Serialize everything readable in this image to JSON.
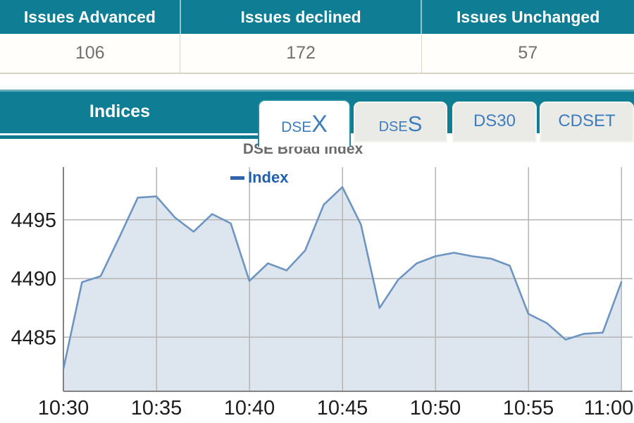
{
  "summary_table": {
    "columns": [
      {
        "header": "Issues Advanced",
        "value": "106"
      },
      {
        "header": "Issues declined",
        "value": "172"
      },
      {
        "header": "Issues Unchanged",
        "value": "57"
      }
    ]
  },
  "indices_panel": {
    "title": "Indices",
    "tabs": [
      {
        "label_prefix": "DSE",
        "label_suffix": "X",
        "active": true
      },
      {
        "label_prefix": "DSE",
        "label_suffix": "S",
        "active": false
      },
      {
        "label": "DS30",
        "active": false
      },
      {
        "label": "CDSET",
        "active": false
      }
    ]
  },
  "colors": {
    "teal": "#0f7d93",
    "tab_text_blue": "#3c7dc0",
    "legend_blue": "#2160ab",
    "title_gray": "#6b6b6b",
    "value_gray": "#707070"
  },
  "chart_data": {
    "type": "area",
    "title": "DSE Broad Index",
    "legend_position": "top-right-inside",
    "grid": true,
    "x": [
      "10:30",
      "10:31",
      "10:32",
      "10:33",
      "10:34",
      "10:35",
      "10:36",
      "10:37",
      "10:38",
      "10:39",
      "10:40",
      "10:41",
      "10:42",
      "10:43",
      "10:44",
      "10:45",
      "10:46",
      "10:47",
      "10:48",
      "10:49",
      "10:50",
      "10:51",
      "10:52",
      "10:53",
      "10:54",
      "10:55",
      "10:56",
      "10:57",
      "10:58",
      "10:59",
      "11:00"
    ],
    "series": [
      {
        "name": "Index",
        "values": [
          4482.3,
          4489.7,
          4490.2,
          4493.5,
          4496.9,
          4497.0,
          4495.2,
          4494.0,
          4495.5,
          4494.7,
          4489.8,
          4491.3,
          4490.7,
          4492.4,
          4496.3,
          4497.8,
          4494.6,
          4487.5,
          4489.9,
          4491.3,
          4491.9,
          4492.2,
          4491.9,
          4491.7,
          4491.1,
          4487.0,
          4486.2,
          4484.8,
          4485.3,
          4485.4,
          4489.7
        ]
      }
    ],
    "x_ticks": [
      "10:30",
      "10:35",
      "10:40",
      "10:45",
      "10:50",
      "10:55",
      "11:00"
    ],
    "y_ticks": [
      4485,
      4490,
      4495
    ],
    "ylim": [
      4480.4,
      4499.5
    ],
    "xlabel": "",
    "ylabel": "",
    "line_color": "#6d95c2",
    "fill_color": "#dde5ef",
    "grid_color": "#b6b6b6",
    "axis_color": "#828282",
    "tick_label_color": "#1d1d1d"
  }
}
